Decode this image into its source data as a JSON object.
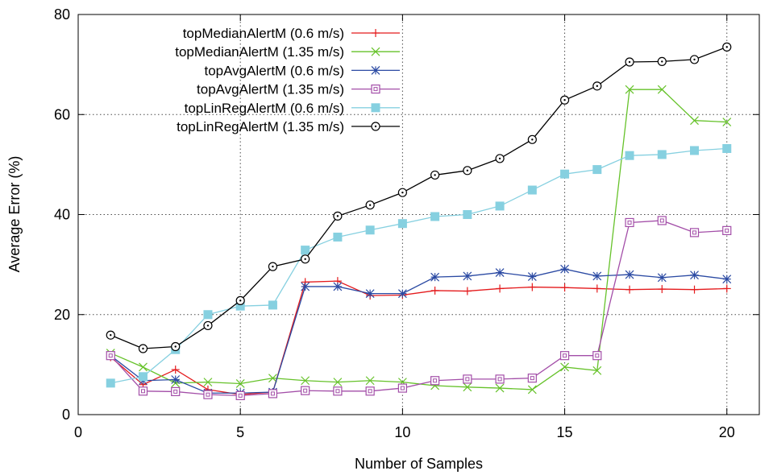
{
  "chart_data": {
    "type": "line",
    "title": "",
    "xlabel": "Number of Samples",
    "ylabel": "Average Error (%)",
    "xlim": [
      0,
      21
    ],
    "ylim": [
      0,
      80
    ],
    "xticks": [
      0,
      5,
      10,
      15,
      20
    ],
    "yticks": [
      0,
      20,
      40,
      60,
      80
    ],
    "grid": true,
    "legend_position": "top-left",
    "x": [
      1,
      2,
      3,
      4,
      5,
      6,
      7,
      8,
      9,
      10,
      11,
      12,
      13,
      14,
      15,
      16,
      17,
      18,
      19,
      20
    ],
    "series": [
      {
        "name": "topMedianAlertM (0.6 m/s)",
        "color": "#e41a1c",
        "marker": "plus",
        "values": [
          11.5,
          6.0,
          9.0,
          5.0,
          4.0,
          4.5,
          26.5,
          26.7,
          23.8,
          23.9,
          24.8,
          24.7,
          25.2,
          25.5,
          25.4,
          25.2,
          25.0,
          25.1,
          25.0,
          25.2
        ]
      },
      {
        "name": "topMedianAlertM (1.35 m/s)",
        "color": "#66c22a",
        "marker": "cross",
        "values": [
          12.3,
          9.5,
          6.3,
          6.5,
          6.2,
          7.3,
          6.8,
          6.5,
          6.8,
          6.5,
          5.8,
          5.5,
          5.3,
          5.0,
          9.5,
          8.8,
          65.0,
          65.0,
          58.8,
          58.5
        ]
      },
      {
        "name": "topAvgAlertM (0.6 m/s)",
        "color": "#2b4aa3",
        "marker": "star",
        "values": [
          11.8,
          6.8,
          7.0,
          4.3,
          4.3,
          4.5,
          25.6,
          25.6,
          24.2,
          24.2,
          27.5,
          27.7,
          28.4,
          27.6,
          29.1,
          27.7,
          28.0,
          27.4,
          27.9,
          27.1
        ]
      },
      {
        "name": "topAvgAlertM (1.35 m/s)",
        "color": "#a34ea8",
        "marker": "box",
        "values": [
          11.8,
          4.7,
          4.6,
          4.0,
          3.8,
          4.2,
          4.8,
          4.7,
          4.7,
          5.3,
          6.8,
          7.1,
          7.1,
          7.3,
          11.8,
          11.8,
          38.4,
          38.8,
          36.4,
          36.8
        ]
      },
      {
        "name": "topLinRegAlertM (0.6 m/s)",
        "color": "#86d0e0",
        "marker": "filled-square",
        "values": [
          6.3,
          7.6,
          13.0,
          20.0,
          21.7,
          21.9,
          32.9,
          35.5,
          36.9,
          38.2,
          39.6,
          40.0,
          41.7,
          44.9,
          48.1,
          49.0,
          51.8,
          52.0,
          52.8,
          53.2
        ]
      },
      {
        "name": "topLinRegAlertM (1.35 m/s)",
        "color": "#000000",
        "marker": "circle-dot",
        "values": [
          15.9,
          13.2,
          13.6,
          17.8,
          22.8,
          29.6,
          31.1,
          39.7,
          41.9,
          44.4,
          47.9,
          48.8,
          51.2,
          55.0,
          62.9,
          65.7,
          70.5,
          70.6,
          71.0,
          73.5
        ]
      }
    ]
  }
}
